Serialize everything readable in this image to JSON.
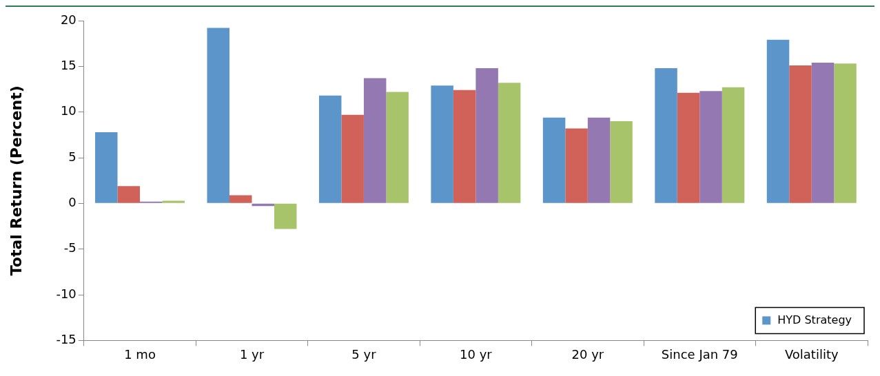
{
  "chart_data": {
    "type": "bar",
    "ylabel": "Total Return (Percent)",
    "categories": [
      "1 mo",
      "1 yr",
      "5 yr",
      "10 yr",
      "20 yr",
      "Since Jan 79",
      "Volatility"
    ],
    "series": [
      {
        "name": "HYD Strategy",
        "color": "#5b95ca",
        "values": [
          7.8,
          19.2,
          11.8,
          12.9,
          9.4,
          14.8,
          17.9
        ]
      },
      {
        "color": "#d0625a",
        "values": [
          1.9,
          0.9,
          9.7,
          12.4,
          8.2,
          12.1,
          15.1
        ]
      },
      {
        "color": "#9378b2",
        "values": [
          0.2,
          -0.3,
          13.7,
          14.8,
          9.4,
          12.3,
          15.4
        ]
      },
      {
        "color": "#a8c46a",
        "values": [
          0.3,
          -2.8,
          12.2,
          13.2,
          9.0,
          12.7,
          15.3
        ]
      }
    ],
    "ylim": [
      -15,
      20
    ],
    "yticks": [
      -15,
      -10,
      -5,
      0,
      5,
      10,
      15,
      20
    ],
    "grid": false,
    "legend": "bottom right"
  }
}
